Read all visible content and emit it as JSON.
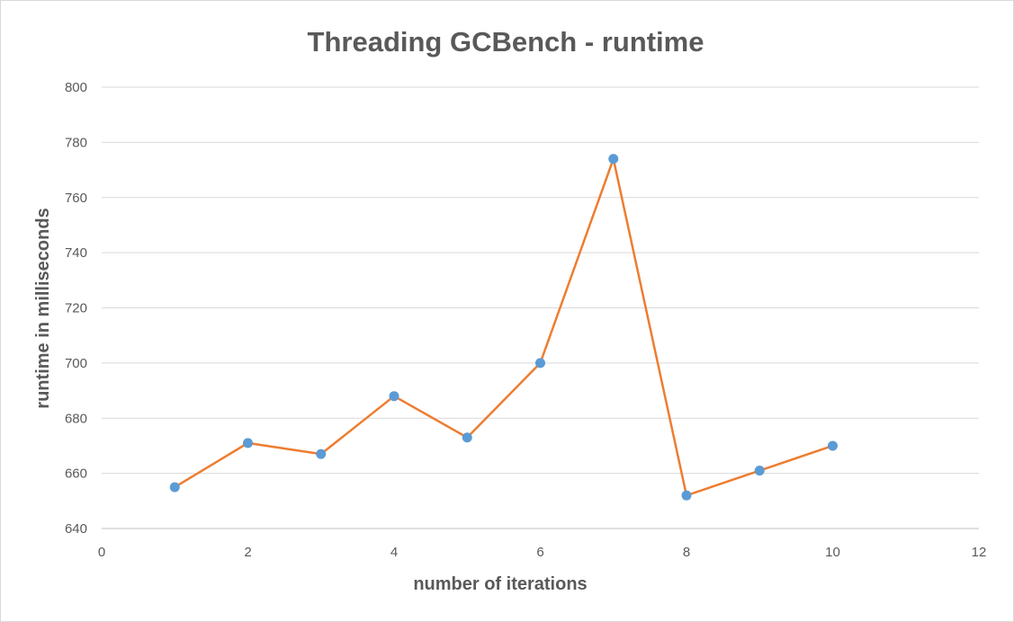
{
  "chart_data": {
    "type": "scatter",
    "title": "Threading GCBench - runtime",
    "xlabel": "number of iterations",
    "ylabel": "runtime in milliseconds",
    "xlim": [
      0,
      12
    ],
    "ylim": [
      640,
      800
    ],
    "xticks": [
      0,
      2,
      4,
      6,
      8,
      10,
      12
    ],
    "yticks": [
      640,
      660,
      680,
      700,
      720,
      740,
      760,
      780,
      800
    ],
    "grid": "horizontal",
    "legend": "none",
    "series": [
      {
        "x": [
          1,
          2,
          3,
          4,
          5,
          6,
          7,
          8,
          9,
          10
        ],
        "y": [
          655,
          671,
          667,
          688,
          673,
          700,
          774,
          652,
          661,
          670
        ],
        "line_color": "#ed7d31",
        "marker_color": "#5b9bd5"
      }
    ]
  }
}
